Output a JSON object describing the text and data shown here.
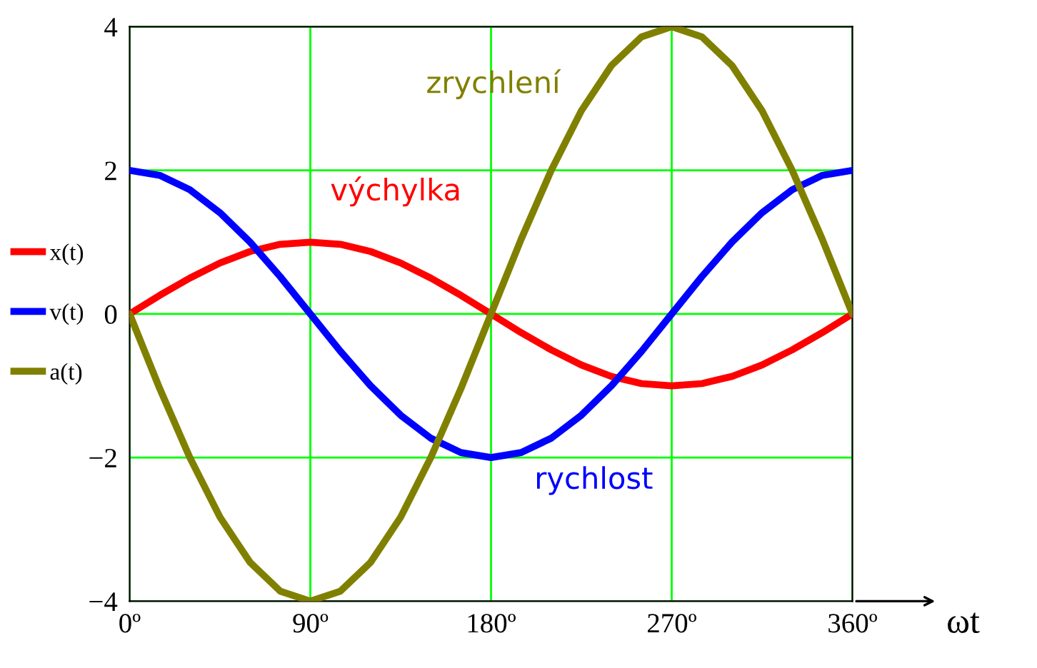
{
  "chart_data": {
    "type": "line",
    "xlabel": "ωt",
    "x": [
      0,
      15,
      30,
      45,
      60,
      75,
      90,
      105,
      120,
      135,
      150,
      165,
      180,
      195,
      210,
      225,
      240,
      255,
      270,
      285,
      300,
      315,
      330,
      345,
      360
    ],
    "series": [
      {
        "name": "x(t)",
        "color": "#ff0000",
        "values": [
          0,
          0.26,
          0.5,
          0.71,
          0.87,
          0.97,
          1,
          0.97,
          0.87,
          0.71,
          0.5,
          0.26,
          0,
          -0.26,
          -0.5,
          -0.71,
          -0.87,
          -0.97,
          -1,
          -0.97,
          -0.87,
          -0.71,
          -0.5,
          -0.26,
          0
        ]
      },
      {
        "name": "v(t)",
        "color": "#0000ff",
        "values": [
          2,
          1.93,
          1.73,
          1.41,
          1,
          0.52,
          0,
          -0.52,
          -1,
          -1.41,
          -1.73,
          -1.93,
          -2,
          -1.93,
          -1.73,
          -1.41,
          -1,
          -0.52,
          0,
          0.52,
          1,
          1.41,
          1.73,
          1.93,
          2
        ]
      },
      {
        "name": "a(t)",
        "color": "#808000",
        "values": [
          0,
          -1.04,
          -2,
          -2.83,
          -3.46,
          -3.86,
          -4,
          -3.86,
          -3.46,
          -2.83,
          -2,
          -1.04,
          0,
          1.04,
          2,
          2.83,
          3.46,
          3.86,
          4,
          3.86,
          3.46,
          2.83,
          2,
          1.04,
          0
        ]
      }
    ],
    "annotations": [
      {
        "text": "výchylka",
        "x": 90,
        "y": 1
      },
      "rychlost",
      "zrychlení"
    ],
    "xlim": [
      0,
      360
    ],
    "xticks": [
      {
        "value": 0,
        "label": "0º"
      },
      {
        "value": 90,
        "label": "90º"
      },
      {
        "value": 180,
        "label": "180º"
      },
      {
        "value": 270,
        "label": "270º"
      },
      {
        "value": 360,
        "label": "360º"
      }
    ],
    "ylim": [
      -4,
      4
    ],
    "yticks": [
      {
        "value": -4,
        "label": "−4"
      },
      {
        "value": -2,
        "label": "−2"
      },
      {
        "value": 0,
        "label": "0"
      },
      {
        "value": 2,
        "label": "2"
      },
      {
        "value": 4,
        "label": "4"
      }
    ],
    "grid": true,
    "legend": "left",
    "marker": "none",
    "line_style": "solid"
  }
}
